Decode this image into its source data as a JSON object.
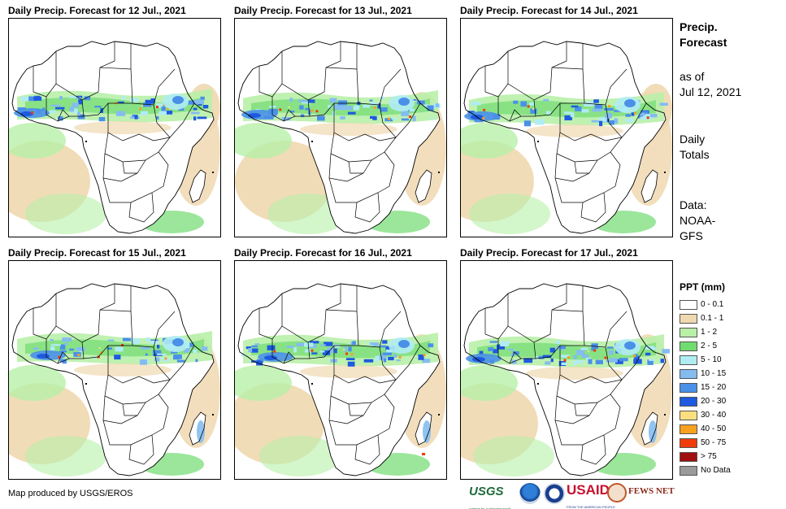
{
  "panels": [
    {
      "title": "Daily Precip. Forecast for 12 Jul., 2021",
      "variant": 0
    },
    {
      "title": "Daily Precip. Forecast for 13 Jul., 2021",
      "variant": 1
    },
    {
      "title": "Daily Precip. Forecast for 14 Jul., 2021",
      "variant": 2
    },
    {
      "title": "Daily Precip. Forecast for 15 Jul., 2021",
      "variant": 3
    },
    {
      "title": "Daily Precip. Forecast for 16 Jul., 2021",
      "variant": 4
    },
    {
      "title": "Daily Precip. Forecast for 17 Jul., 2021",
      "variant": 5
    }
  ],
  "sidebar": {
    "title_line1": "Precip.",
    "title_line2": "Forecast",
    "as_of_line1": "as of",
    "as_of_line2": "Jul 12, 2021",
    "daily_line1": "Daily",
    "daily_line2": "Totals",
    "data_line1": "Data:",
    "data_line2": "NOAA-",
    "data_line3": "GFS"
  },
  "legend": {
    "title": "PPT (mm)",
    "items": [
      {
        "label": "0 - 0.1",
        "color": "#ffffff"
      },
      {
        "label": "0.1 - 1",
        "color": "#f0d8b0"
      },
      {
        "label": "1 - 2",
        "color": "#b8f0a8"
      },
      {
        "label": "2 - 5",
        "color": "#70dc70"
      },
      {
        "label": "5 - 10",
        "color": "#b0ecf4"
      },
      {
        "label": "10 - 15",
        "color": "#84bcf0"
      },
      {
        "label": "15 - 20",
        "color": "#4a90e8"
      },
      {
        "label": "20 - 30",
        "color": "#1e5ae0"
      },
      {
        "label": "30 - 40",
        "color": "#fce080"
      },
      {
        "label": "40 - 50",
        "color": "#f8a020"
      },
      {
        "label": "50 - 75",
        "color": "#f03c0c"
      },
      {
        "label": "> 75",
        "color": "#a01010"
      },
      {
        "label": "No Data",
        "color": "#9a9a9a"
      }
    ]
  },
  "footer": {
    "credit": "Map produced by USGS/EROS"
  },
  "logos": {
    "usgs": "USGS",
    "usgs_tagline": "science for a changing world",
    "usaid": "USAID",
    "usaid_tagline": "FROM THE AMERICAN PEOPLE",
    "fews": "FEWS NET"
  }
}
